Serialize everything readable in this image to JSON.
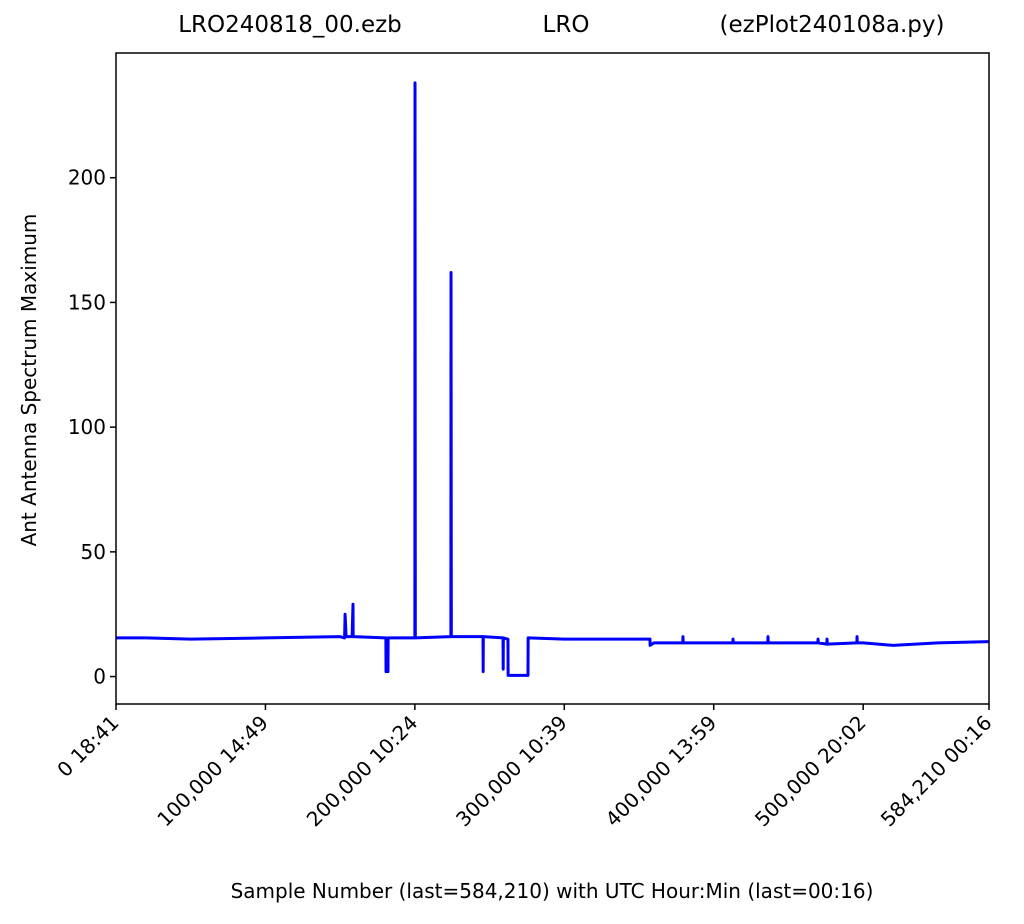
{
  "chart_data": {
    "type": "line",
    "title_left": "LRO240818_00.ezb",
    "title_center": "LRO",
    "title_right": "(ezPlot240108a.py)",
    "x_label": "Sample Number (last=584,210) with UTC Hour:Min (last=00:16)",
    "y_label": "Ant Antenna Spectrum Maximum",
    "xlim": [
      0,
      584210
    ],
    "ylim": [
      -11,
      250
    ],
    "xticks": [
      {
        "value": 0,
        "label": "0  18:41"
      },
      {
        "value": 100000,
        "label": "100,000  14:49"
      },
      {
        "value": 200000,
        "label": "200,000  10:24"
      },
      {
        "value": 300000,
        "label": "300,000  10:39"
      },
      {
        "value": 400000,
        "label": "400,000  13:59"
      },
      {
        "value": 500000,
        "label": "500,000  20:02"
      },
      {
        "value": 584210,
        "label": "584,210  00:16"
      }
    ],
    "yticks": [
      0,
      50,
      100,
      150,
      200
    ],
    "grid": false,
    "series": [
      {
        "color": "#0000ff",
        "x": [
          0,
          20000,
          50000,
          100000,
          150000,
          153000,
          153300,
          154000,
          158000,
          158600,
          158700,
          180600,
          180700,
          182000,
          182100,
          200000,
          200100,
          200300,
          224100,
          224200,
          224400,
          245600,
          245700,
          245800,
          259000,
          259100,
          259200,
          262300,
          262400,
          275700,
          275800,
          300000,
          357350,
          357400,
          360000,
          379300,
          379400,
          379600,
          400000,
          412800,
          412900,
          413100,
          436200,
          436300,
          436500,
          469700,
          469800,
          470000,
          475700,
          475800,
          476000,
          495800,
          495900,
          496100,
          500000,
          520000,
          550000,
          584210
        ],
        "values": [
          15.5,
          15.5,
          15,
          15.5,
          16,
          15.5,
          25,
          16,
          16,
          29,
          16,
          15.5,
          2,
          2,
          15.5,
          15.5,
          238,
          15.5,
          16,
          162,
          16,
          16,
          2,
          16,
          15.5,
          3,
          15.5,
          15,
          0.5,
          0.5,
          15.5,
          15,
          15,
          12.5,
          13.5,
          13.5,
          16,
          13.5,
          13.5,
          13.5,
          15,
          13.5,
          13.5,
          16,
          13.5,
          13.5,
          15,
          13.5,
          13,
          15,
          13,
          13.5,
          16,
          13.5,
          13.5,
          12.5,
          13.5,
          14
        ]
      }
    ]
  }
}
